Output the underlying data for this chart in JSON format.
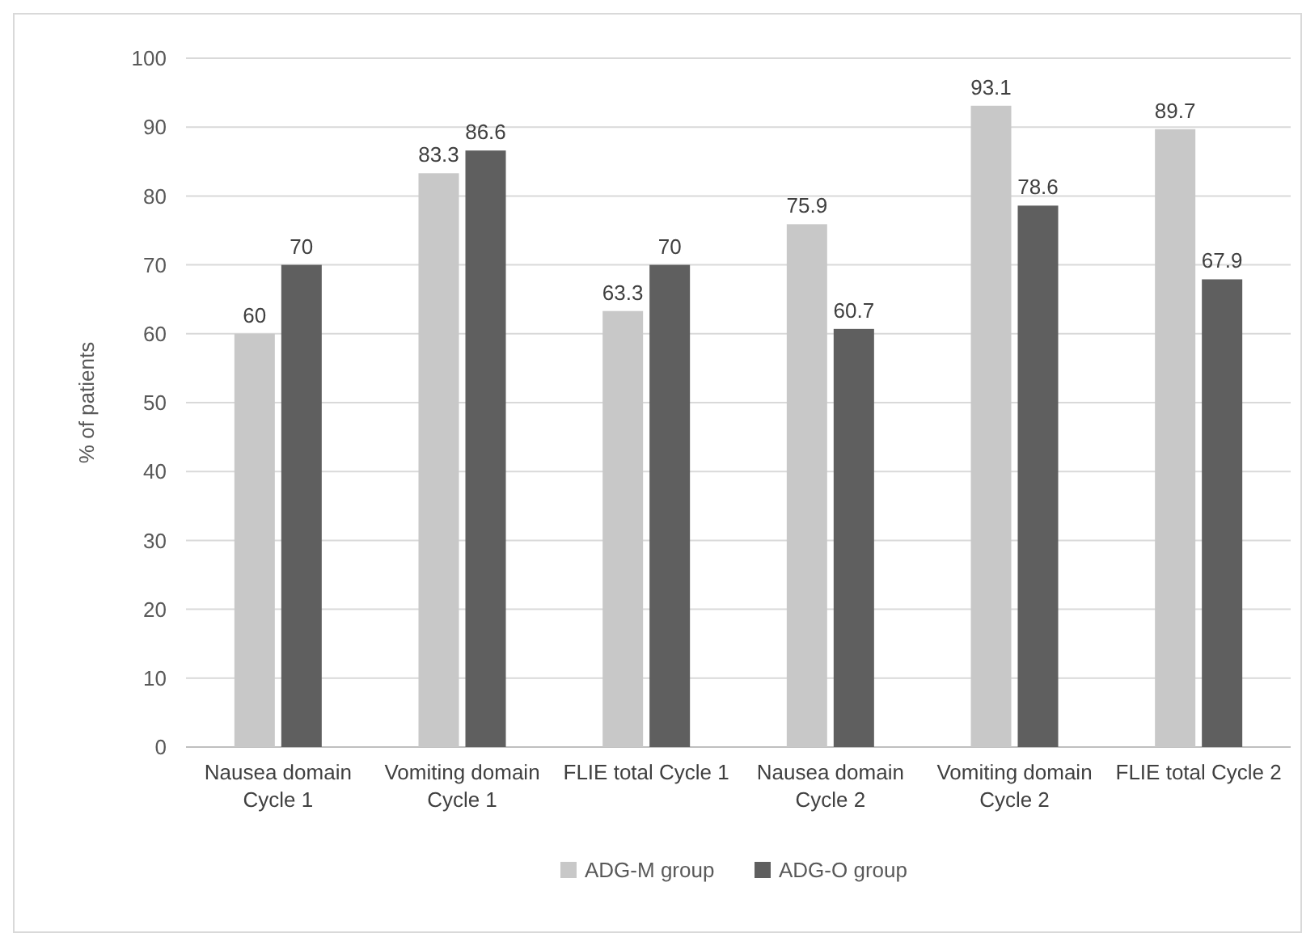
{
  "chart_data": {
    "type": "bar",
    "ylabel": "% of patients",
    "categories": [
      "Nausea domain Cycle 1",
      "Vomiting domain Cycle 1",
      "FLIE total Cycle 1",
      "Nausea domain Cycle 2",
      "Vomiting domain Cycle 2",
      "FLIE total Cycle 2"
    ],
    "series": [
      {
        "name": "ADG-M group",
        "color": "#c8c8c8",
        "values": [
          60,
          83.3,
          63.3,
          75.9,
          93.1,
          89.7
        ]
      },
      {
        "name": "ADG-O group",
        "color": "#5f5f5f",
        "values": [
          70,
          86.6,
          70,
          60.7,
          78.6,
          67.9
        ]
      }
    ],
    "ylim": [
      0,
      100
    ],
    "yticks": [
      0,
      10,
      20,
      30,
      40,
      50,
      60,
      70,
      80,
      90,
      100
    ],
    "grid": "y",
    "legend": "bottom",
    "data_labels": true
  }
}
